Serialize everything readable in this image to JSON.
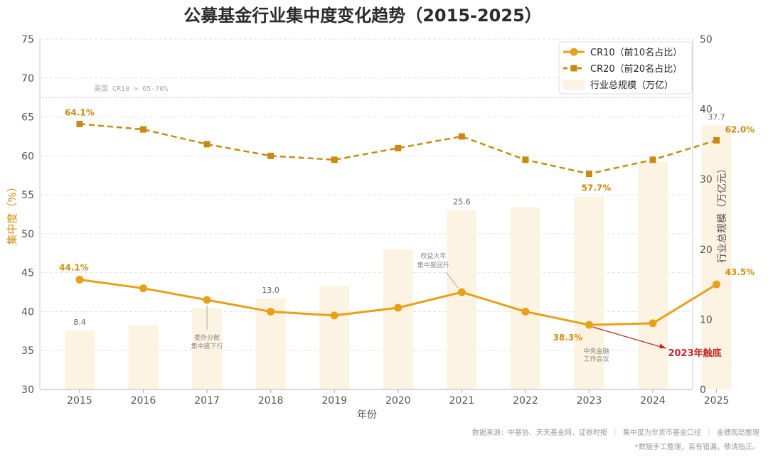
{
  "chart_data": {
    "type": "line",
    "title": "公募基金行业集中度变化趋势（2015-2025）",
    "xlabel": "年份",
    "ylabel": "集中度（%）",
    "y2label": "行业总规模（万亿元）",
    "x": [
      "2015",
      "2016",
      "2017",
      "2018",
      "2019",
      "2020",
      "2021",
      "2022",
      "2023",
      "2024",
      "2025"
    ],
    "ylim": [
      30,
      75
    ],
    "yticks": [
      30,
      35,
      40,
      45,
      50,
      55,
      60,
      65,
      70,
      75
    ],
    "y2lim": [
      0,
      50
    ],
    "y2ticks": [
      0,
      10,
      20,
      30,
      40,
      50
    ],
    "series": [
      {
        "name": "CR10（前10名占比）",
        "type": "line",
        "axis": "left",
        "color": "#e6a019",
        "marker": "circle",
        "style": "solid",
        "values": [
          44.1,
          43.0,
          41.5,
          40.0,
          39.5,
          40.5,
          42.5,
          40.0,
          38.3,
          38.5,
          43.5
        ]
      },
      {
        "name": "CR20（前20名占比）",
        "type": "line",
        "axis": "left",
        "color": "#c88a12",
        "marker": "square",
        "style": "dashed",
        "values": [
          64.1,
          63.4,
          61.5,
          60.0,
          59.5,
          61.0,
          62.5,
          59.5,
          57.7,
          59.5,
          62.0
        ]
      },
      {
        "name": "行业总规模（万亿）",
        "type": "bar",
        "axis": "right",
        "color": "#fdf3e3",
        "values": [
          8.4,
          9.2,
          11.6,
          13.0,
          14.8,
          20.0,
          25.6,
          26.0,
          27.5,
          32.5,
          37.7
        ]
      }
    ],
    "point_labels": {
      "cr10": [
        {
          "index": 0,
          "text": "44.1%"
        },
        {
          "index": 8,
          "text": "38.3%"
        },
        {
          "index": 10,
          "text": "43.5%"
        }
      ],
      "cr20": [
        {
          "index": 0,
          "text": "64.1%"
        },
        {
          "index": 8,
          "text": "57.7%"
        },
        {
          "index": 10,
          "text": "62.0%"
        }
      ],
      "bars": [
        {
          "index": 0,
          "text": "8.4"
        },
        {
          "index": 3,
          "text": "13.0"
        },
        {
          "index": 6,
          "text": "25.6"
        },
        {
          "index": 10,
          "text": "37.7"
        }
      ]
    },
    "reference_line": {
      "value": 67.5,
      "label": "美国 CR10 ≈ 65-70%"
    },
    "annotations": [
      {
        "index": 2,
        "lines": [
          "委外分散",
          "集中度下行"
        ]
      },
      {
        "index": 6,
        "lines": [
          "权益大年",
          "集中度回升"
        ]
      },
      {
        "index": 8,
        "lines": [
          "中央金融",
          "工作会议"
        ]
      }
    ],
    "highlight": {
      "index": 8,
      "text": "2023年触底"
    },
    "legend_position": "top-right",
    "grid": true
  },
  "footer": {
    "source": "数据来源：中基协、天天基金网、证券时报 ｜ 集中度为非货币基金口径 ｜ 金穗观局整理",
    "disclaimer": "*数据手工整理，若有错漏，敬请指正。"
  },
  "colors": {
    "cr10": "#e6a019",
    "cr20": "#c88a12",
    "bar": "#fdf3e3",
    "highlight": "#c62828",
    "axis_text": "#555555"
  }
}
